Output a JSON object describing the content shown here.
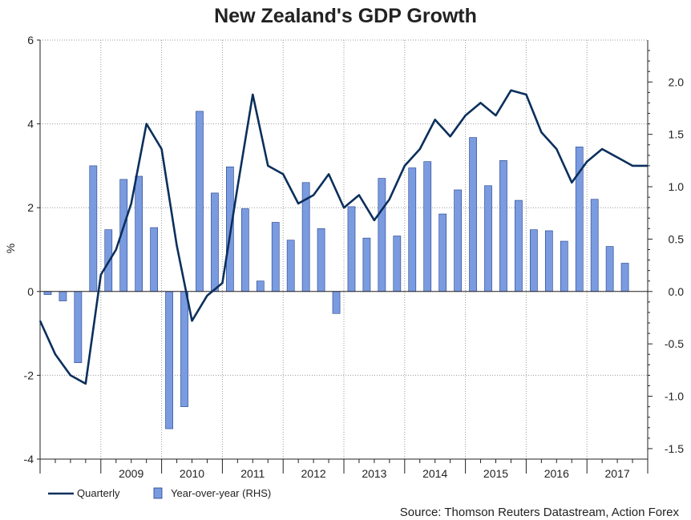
{
  "chart_data": {
    "type": "bar+line",
    "title": "New Zealand's GDP Growth",
    "ylabel": "%",
    "ylim_left": [
      -4,
      6
    ],
    "yticks_left": [
      "-4",
      "-2",
      "0",
      "2",
      "4",
      "6"
    ],
    "ylim_right": [
      -1.6,
      2.4
    ],
    "yticks_right": [
      "-1.5",
      "-1.0",
      "-0.5",
      "0.0",
      "0.5",
      "1.0",
      "1.5",
      "2.0"
    ],
    "x_start_year": 2008,
    "x_end_year": 2018,
    "year_labels": [
      "2009",
      "2010",
      "2011",
      "2012",
      "2013",
      "2014",
      "2015",
      "2016",
      "2017"
    ],
    "series": [
      {
        "name": "Year-over-year (RHS)",
        "type": "bar",
        "axis": "right",
        "color": "#7b9be0",
        "edge_color": "#1f3f8a",
        "quarters": [
          "2008Q1",
          "2008Q2",
          "2008Q3",
          "2008Q4",
          "2009Q1",
          "2009Q2",
          "2009Q3",
          "2009Q4",
          "2010Q1",
          "2010Q2",
          "2010Q3",
          "2010Q4",
          "2011Q1",
          "2011Q2",
          "2011Q3",
          "2011Q4",
          "2012Q1",
          "2012Q2",
          "2012Q3",
          "2012Q4",
          "2013Q1",
          "2013Q2",
          "2013Q3",
          "2013Q4",
          "2014Q1",
          "2014Q2",
          "2014Q3",
          "2014Q4",
          "2015Q1",
          "2015Q2",
          "2015Q3",
          "2015Q4",
          "2016Q1",
          "2016Q2",
          "2016Q3",
          "2016Q4",
          "2017Q1",
          "2017Q2",
          "2017Q3",
          "2017Q4"
        ],
        "values": [
          -0.03,
          -0.09,
          -0.68,
          1.2,
          0.59,
          1.07,
          1.1,
          0.61,
          -1.31,
          -1.1,
          1.72,
          0.94,
          1.19,
          0.79,
          0.1,
          0.66,
          0.49,
          1.04,
          0.6,
          -0.21,
          0.81,
          0.51,
          1.08,
          0.53,
          1.18,
          1.24,
          0.74,
          0.97,
          1.47,
          1.01,
          1.25,
          0.87,
          0.59,
          0.58,
          0.48,
          1.38,
          0.88,
          0.43,
          0.27,
          null
        ]
      },
      {
        "name": "Quarterly",
        "type": "line",
        "axis": "left",
        "color": "#0b2f5c",
        "x_quarter_index": [
          0,
          1,
          2,
          3,
          4,
          5,
          6,
          7,
          8,
          9,
          10,
          11,
          12,
          13,
          14,
          15,
          16,
          17,
          18,
          19,
          20,
          21,
          22,
          23,
          24,
          25,
          26,
          27,
          28,
          29,
          30,
          31,
          32,
          33,
          34,
          35,
          36,
          37,
          38,
          39,
          40
        ],
        "values": [
          -0.7,
          -1.5,
          -2.0,
          -2.2,
          0.4,
          1.0,
          2.1,
          4.0,
          3.4,
          1.1,
          -0.7,
          -0.1,
          0.2,
          2.5,
          4.7,
          3.0,
          2.8,
          2.1,
          2.3,
          2.8,
          2.0,
          2.3,
          1.7,
          2.2,
          3.0,
          3.4,
          4.1,
          3.7,
          4.2,
          4.5,
          4.2,
          4.8,
          4.7,
          3.8,
          3.4,
          2.6,
          3.1,
          3.4,
          3.2,
          3.0,
          3.0
        ]
      }
    ],
    "legend": [
      "Quarterly",
      "Year-over-year (RHS)"
    ],
    "legend_position": "bottom-left"
  },
  "source": "Source: Thomson Reuters Datastream, Action Forex"
}
